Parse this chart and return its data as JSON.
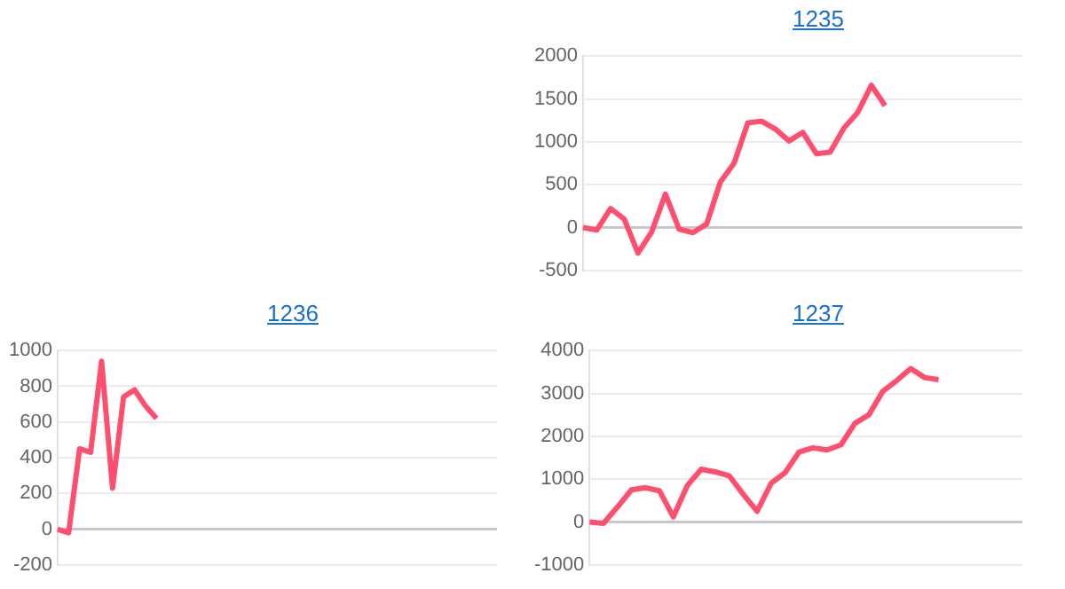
{
  "chart_data": [
    {
      "type": "line",
      "title": "1235",
      "categories": [
        null,
        null,
        null,
        null,
        null,
        null,
        null,
        null,
        null,
        null,
        null,
        null,
        null,
        null,
        null,
        null,
        null,
        null,
        null,
        null,
        null,
        null,
        null,
        null,
        null,
        null,
        null,
        null,
        null,
        null,
        null,
        null,
        null
      ],
      "series": [
        {
          "color": "#ff4f6e",
          "values": [
            0,
            -30,
            220,
            100,
            -300,
            -50,
            390,
            -20,
            -60,
            40,
            530,
            750,
            1220,
            1240,
            1150,
            1010,
            1110,
            860,
            880,
            1160,
            1340,
            1660,
            1420,
            null,
            null,
            null,
            null,
            null,
            null,
            null,
            null,
            null,
            null
          ]
        }
      ],
      "ylim": [
        -500,
        2000
      ],
      "yticks": [
        -500,
        0,
        500,
        1000,
        1500,
        2000
      ],
      "grid": "y",
      "legend": false,
      "tick_labels": "y",
      "marker": "none"
    },
    {
      "type": "line",
      "title": "1236",
      "categories": [
        null,
        null,
        null,
        null,
        null,
        null,
        null,
        null,
        null,
        null,
        null,
        null,
        null,
        null,
        null,
        null,
        null,
        null,
        null,
        null,
        null,
        null,
        null,
        null,
        null,
        null,
        null,
        null,
        null,
        null,
        null,
        null,
        null,
        null,
        null,
        null,
        null,
        null,
        null,
        null,
        null
      ],
      "series": [
        {
          "color": "#ff4f6e",
          "values": [
            0,
            -20,
            450,
            430,
            940,
            230,
            740,
            780,
            690,
            620,
            null,
            null,
            null,
            null,
            null,
            null,
            null,
            null,
            null,
            null,
            null,
            null,
            null,
            null,
            null,
            null,
            null,
            null,
            null,
            null,
            null,
            null,
            null,
            null,
            null,
            null,
            null,
            null,
            null,
            null,
            null
          ]
        }
      ],
      "ylim": [
        -200,
        1000
      ],
      "yticks": [
        -200,
        0,
        200,
        400,
        600,
        800,
        1000
      ],
      "grid": "y",
      "legend": false,
      "tick_labels": "y",
      "marker": "none"
    },
    {
      "type": "line",
      "title": "1237",
      "categories": [
        null,
        null,
        null,
        null,
        null,
        null,
        null,
        null,
        null,
        null,
        null,
        null,
        null,
        null,
        null,
        null,
        null,
        null,
        null,
        null,
        null,
        null,
        null,
        null,
        null,
        null,
        null,
        null,
        null,
        null,
        null,
        null
      ],
      "series": [
        {
          "color": "#ff4f6e",
          "values": [
            0,
            -30,
            350,
            750,
            800,
            730,
            120,
            850,
            1230,
            1170,
            1080,
            650,
            250,
            900,
            1150,
            1630,
            1730,
            1680,
            1800,
            2300,
            2500,
            3050,
            3300,
            3580,
            3370,
            3320,
            null,
            null,
            null,
            null,
            null,
            null
          ]
        }
      ],
      "ylim": [
        -1000,
        4000
      ],
      "yticks": [
        -1000,
        0,
        1000,
        2000,
        3000,
        4000
      ],
      "grid": "y",
      "legend": false,
      "tick_labels": "y",
      "marker": "none"
    }
  ]
}
